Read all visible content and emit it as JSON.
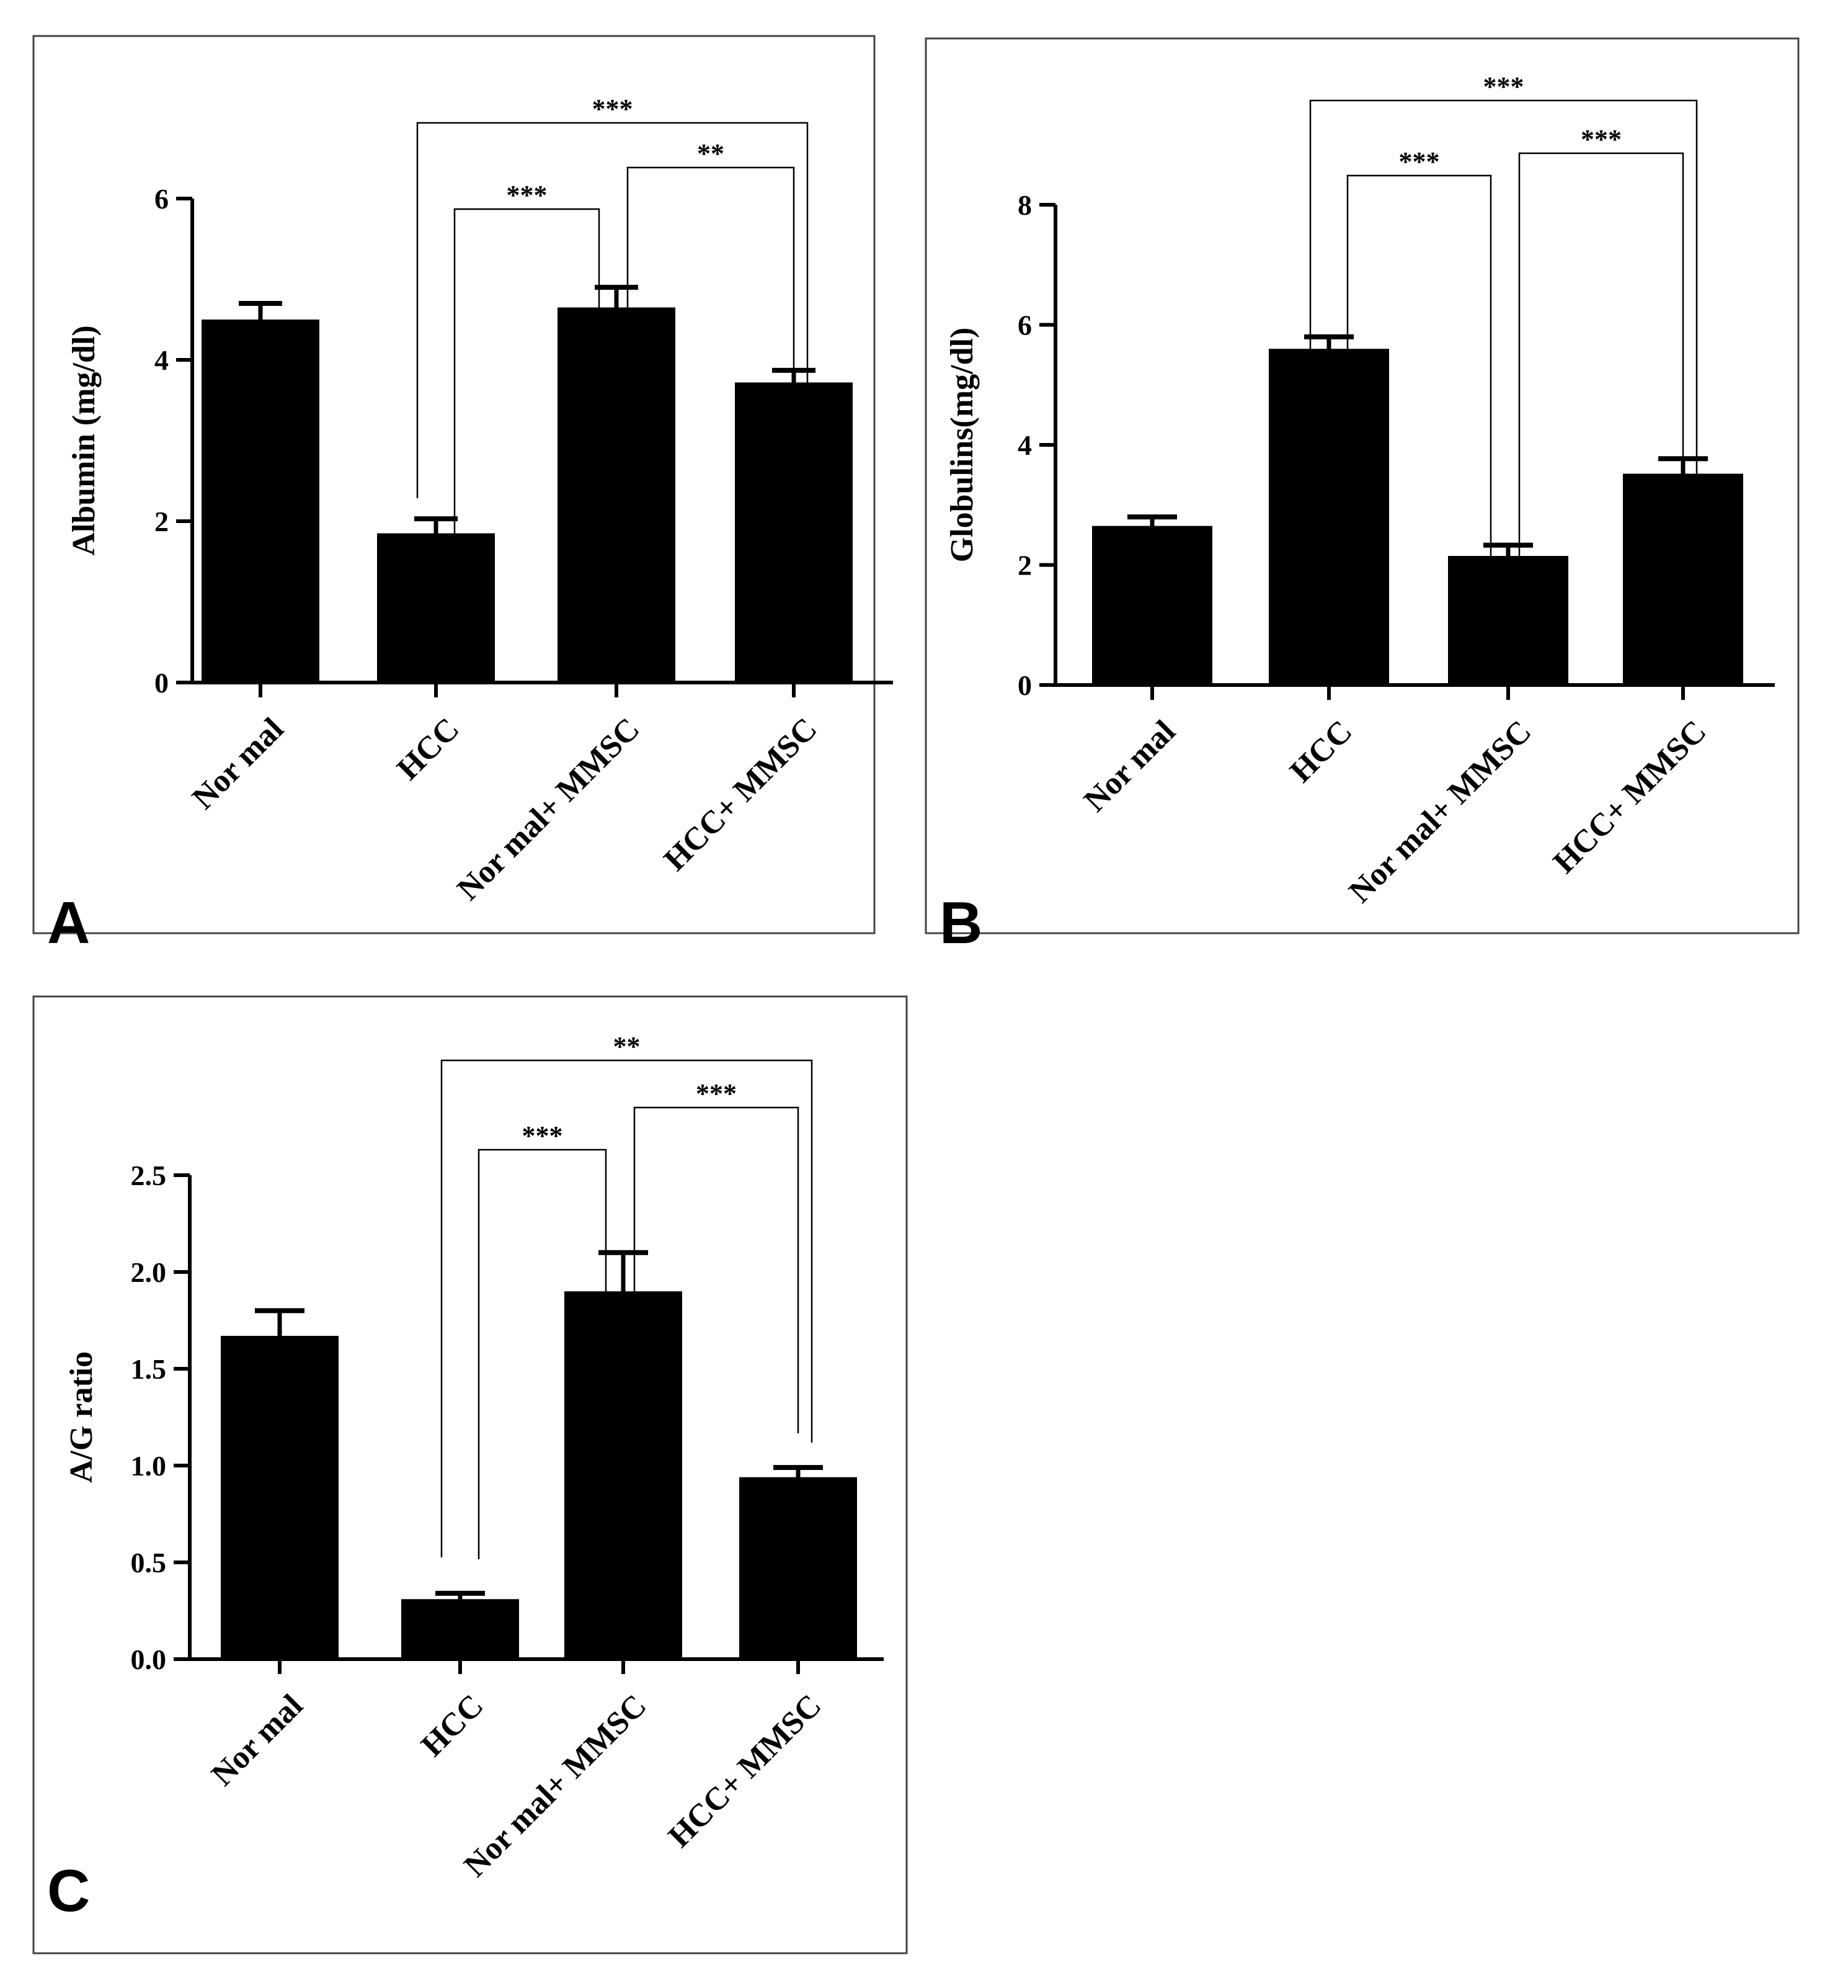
{
  "chart_data": [
    {
      "panel_label": "A",
      "type": "bar",
      "ylabel": "Albumin (mg/dl)",
      "categories": [
        "Normal",
        "HCC",
        "Normal+ MMSC",
        "HCC+ MMSC"
      ],
      "tick_labels": [
        "Nor mal",
        "HCC",
        "Nor mal+ MMSC",
        "HCC+ MMSC"
      ],
      "values": [
        4.5,
        1.85,
        4.65,
        3.72
      ],
      "errors": [
        0.2,
        0.18,
        0.25,
        0.15
      ],
      "ylim": [
        0,
        6
      ],
      "yticks": [
        0,
        2,
        4,
        6
      ],
      "ytick_labels": [
        "0",
        "2",
        "4",
        "6"
      ],
      "bar_color": "#000000",
      "comparisons": [
        {
          "from": 1,
          "to": 2,
          "label": "***"
        },
        {
          "from": 2,
          "to": 3,
          "label": "**"
        },
        {
          "from": 1,
          "to": 3,
          "label": "***"
        }
      ]
    },
    {
      "panel_label": "B",
      "type": "bar",
      "ylabel": "Globulins(mg/dl)",
      "categories": [
        "Normal",
        "HCC",
        "Normal+ MMSC",
        "HCC+ MMSC"
      ],
      "tick_labels": [
        "Nor mal",
        "HCC",
        "Nor mal+ MMSC",
        "HCC+ MMSC"
      ],
      "values": [
        2.65,
        5.6,
        2.15,
        3.52
      ],
      "errors": [
        0.15,
        0.2,
        0.18,
        0.25
      ],
      "ylim": [
        0,
        8
      ],
      "yticks": [
        0,
        2,
        4,
        6,
        8
      ],
      "ytick_labels": [
        "0",
        "2",
        "4",
        "6",
        "8"
      ],
      "bar_color": "#000000",
      "comparisons": [
        {
          "from": 1,
          "to": 2,
          "label": "***"
        },
        {
          "from": 2,
          "to": 3,
          "label": "***"
        },
        {
          "from": 1,
          "to": 3,
          "label": "***"
        }
      ]
    },
    {
      "panel_label": "C",
      "type": "bar",
      "ylabel": "A/G ratio",
      "categories": [
        "Normal",
        "HCC",
        "Normal+ MMSC",
        "HCC+ MMSC"
      ],
      "tick_labels": [
        "Nor mal",
        "HCC",
        "Nor mal+ MMSC",
        "HCC+ MMSC"
      ],
      "values": [
        1.67,
        0.31,
        1.9,
        0.94
      ],
      "errors": [
        0.13,
        0.03,
        0.2,
        0.05
      ],
      "ylim": [
        0,
        2.5
      ],
      "yticks": [
        0,
        0.5,
        1.0,
        1.5,
        2.0,
        2.5
      ],
      "ytick_labels": [
        "0.0",
        "0.5",
        "1.0",
        "1.5",
        "2.0",
        "2.5"
      ],
      "bar_color": "#000000",
      "comparisons": [
        {
          "from": 1,
          "to": 2,
          "label": "***"
        },
        {
          "from": 2,
          "to": 3,
          "label": "***"
        },
        {
          "from": 1,
          "to": 3,
          "label": "**"
        }
      ]
    }
  ]
}
